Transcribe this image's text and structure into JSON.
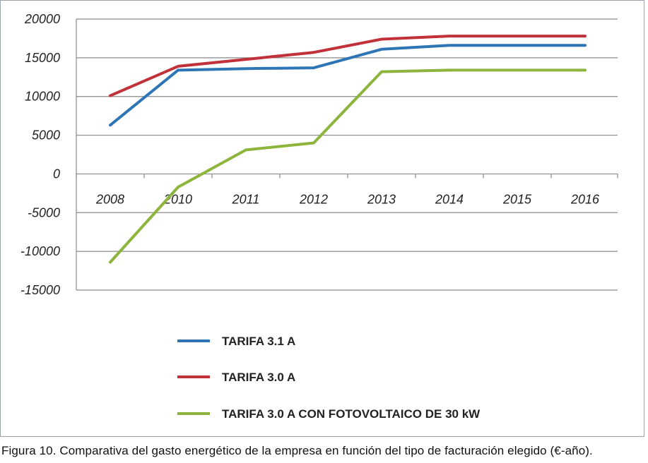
{
  "chart_data": {
    "type": "line",
    "categories": [
      "2008",
      "2010",
      "2011",
      "2012",
      "2013",
      "2014",
      "2015",
      "2016"
    ],
    "ylim": [
      -15000,
      20000
    ],
    "yticks": [
      "20000",
      "15000",
      "10000",
      "5000",
      "0",
      "-5000",
      "-10000",
      "-15000"
    ],
    "ytick_values": [
      20000,
      15000,
      10000,
      5000,
      0,
      -5000,
      -10000,
      -15000
    ],
    "grid": true,
    "legend_position": "bottom-left",
    "series": [
      {
        "name": "TARIFA 3.1 A",
        "color": "#2e75b6",
        "values": [
          6300,
          13400,
          13600,
          13700,
          16100,
          16600,
          16600,
          16600
        ]
      },
      {
        "name": "TARIFA 3.0 A",
        "color": "#c0313a",
        "values": [
          10100,
          13900,
          14800,
          15700,
          17400,
          17800,
          17800,
          17800
        ]
      },
      {
        "name": "TARIFA 3.0 A CON FOTOVOLTAICO DE 30 kW",
        "color": "#8db43c",
        "values": [
          -11400,
          -1700,
          3100,
          4000,
          13200,
          13400,
          13400,
          13400
        ]
      }
    ]
  },
  "caption": "Figura 10. Comparativa del gasto energético de la empresa en función del tipo de facturación elegido (€-año)."
}
